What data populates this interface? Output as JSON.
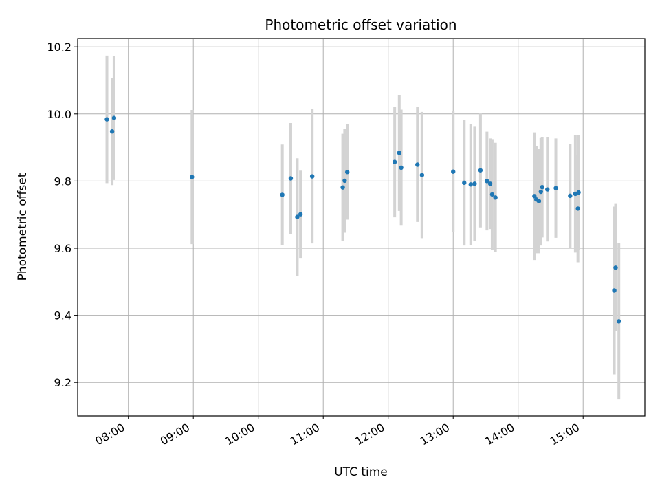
{
  "chart_data": {
    "type": "scatter",
    "title": "Photometric offset variation",
    "xlabel": "UTC time",
    "ylabel": "Photometric offset",
    "x_unit": "hours UTC",
    "xlim": [
      7.22,
      15.95
    ],
    "ylim": [
      9.1,
      10.225
    ],
    "grid": true,
    "x_ticks": [
      {
        "value": 8,
        "label": "08:00"
      },
      {
        "value": 9,
        "label": "09:00"
      },
      {
        "value": 10,
        "label": "10:00"
      },
      {
        "value": 11,
        "label": "11:00"
      },
      {
        "value": 12,
        "label": "12:00"
      },
      {
        "value": 13,
        "label": "13:00"
      },
      {
        "value": 14,
        "label": "14:00"
      },
      {
        "value": 15,
        "label": "15:00"
      }
    ],
    "y_ticks": [
      {
        "value": 9.2,
        "label": "9.2"
      },
      {
        "value": 9.4,
        "label": "9.4"
      },
      {
        "value": 9.6,
        "label": "9.6"
      },
      {
        "value": 9.8,
        "label": "9.8"
      },
      {
        "value": 10.0,
        "label": "10.0"
      },
      {
        "value": 10.2,
        "label": "10.2"
      }
    ],
    "colors": {
      "point": "#1f77b4",
      "errorbar": "#d3d3d3",
      "grid": "#b0b0b0"
    },
    "series": [
      {
        "points": [
          {
            "x": 7.67,
            "y": 9.984,
            "err": 0.19
          },
          {
            "x": 7.75,
            "y": 9.948,
            "err": 0.16
          },
          {
            "x": 7.78,
            "y": 9.988,
            "err": 0.185
          },
          {
            "x": 8.98,
            "y": 9.812,
            "err": 0.2
          },
          {
            "x": 10.37,
            "y": 9.759,
            "err": 0.15
          },
          {
            "x": 10.5,
            "y": 9.808,
            "err": 0.165
          },
          {
            "x": 10.6,
            "y": 9.693,
            "err": 0.175
          },
          {
            "x": 10.65,
            "y": 9.701,
            "err": 0.13
          },
          {
            "x": 10.83,
            "y": 9.814,
            "err": 0.2
          },
          {
            "x": 11.3,
            "y": 9.781,
            "err": 0.16
          },
          {
            "x": 11.33,
            "y": 9.801,
            "err": 0.155
          },
          {
            "x": 11.37,
            "y": 9.827,
            "err": 0.142
          },
          {
            "x": 12.1,
            "y": 9.857,
            "err": 0.165
          },
          {
            "x": 12.17,
            "y": 9.884,
            "err": 0.173
          },
          {
            "x": 12.2,
            "y": 9.84,
            "err": 0.173
          },
          {
            "x": 12.45,
            "y": 9.849,
            "err": 0.171
          },
          {
            "x": 12.52,
            "y": 9.818,
            "err": 0.188
          },
          {
            "x": 13.0,
            "y": 9.828,
            "err": 0.18
          },
          {
            "x": 13.17,
            "y": 9.795,
            "err": 0.187
          },
          {
            "x": 13.27,
            "y": 9.79,
            "err": 0.18
          },
          {
            "x": 13.33,
            "y": 9.792,
            "err": 0.17
          },
          {
            "x": 13.42,
            "y": 9.832,
            "err": 0.17
          },
          {
            "x": 13.52,
            "y": 9.8,
            "err": 0.147
          },
          {
            "x": 13.57,
            "y": 9.792,
            "err": 0.135
          },
          {
            "x": 13.6,
            "y": 9.76,
            "err": 0.165
          },
          {
            "x": 13.65,
            "y": 9.751,
            "err": 0.163
          },
          {
            "x": 14.25,
            "y": 9.755,
            "err": 0.19
          },
          {
            "x": 14.28,
            "y": 9.745,
            "err": 0.16
          },
          {
            "x": 14.32,
            "y": 9.74,
            "err": 0.155
          },
          {
            "x": 14.35,
            "y": 9.768,
            "err": 0.16
          },
          {
            "x": 14.37,
            "y": 9.782,
            "err": 0.15
          },
          {
            "x": 14.45,
            "y": 9.775,
            "err": 0.155
          },
          {
            "x": 14.58,
            "y": 9.779,
            "err": 0.148
          },
          {
            "x": 14.8,
            "y": 9.756,
            "err": 0.155
          },
          {
            "x": 14.88,
            "y": 9.762,
            "err": 0.175
          },
          {
            "x": 14.92,
            "y": 9.718,
            "err": 0.16
          },
          {
            "x": 14.93,
            "y": 9.766,
            "err": 0.17
          },
          {
            "x": 15.48,
            "y": 9.474,
            "err": 0.25
          },
          {
            "x": 15.5,
            "y": 9.542,
            "err": 0.19
          },
          {
            "x": 15.55,
            "y": 9.382,
            "err": 0.233
          }
        ]
      }
    ]
  }
}
